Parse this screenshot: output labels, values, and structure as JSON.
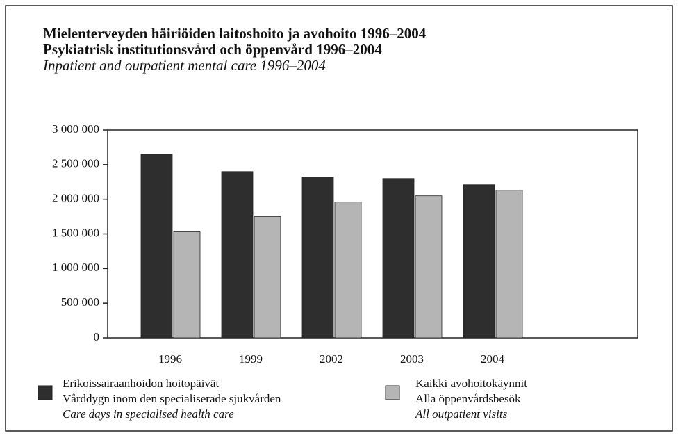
{
  "chart_data": {
    "type": "bar",
    "title": "Mielenterveyden häiriöiden laitoshoito ja avohoito 1996–2004",
    "subtitle": "Psykiatrisk institutionsvård och öppenvård 1996–2004",
    "subtitle_en": "Inpatient and outpatient mental care 1996–2004",
    "categories": [
      "1996",
      "1999",
      "2002",
      "2003",
      "2004"
    ],
    "series": [
      {
        "name": "Erikoissairaanhoidon hoitopäivät",
        "name_sv": "Vårddygn inom den specialiserade sjukvården",
        "name_en": "Care days in specialised health care",
        "color": "#2e2e2e",
        "values": [
          2650000,
          2400000,
          2320000,
          2300000,
          2210000
        ]
      },
      {
        "name": "Kaikki avohoitokäynnit",
        "name_sv": "Alla öppenvårdsbesök",
        "name_en": "All outpatient visits",
        "color": "#b5b5b5",
        "values": [
          1530000,
          1750000,
          1960000,
          2050000,
          2130000
        ]
      }
    ],
    "ylim": [
      0,
      3000000
    ],
    "yticks": [
      0,
      {
        "value": 500000,
        "label": "500 000"
      },
      {
        "value": 1000000,
        "label": "1 000 000"
      },
      {
        "value": 1500000,
        "label": "1 500 000"
      },
      {
        "value": 2000000,
        "label": "2 000 000"
      },
      {
        "value": 2500000,
        "label": "2 500 000"
      },
      {
        "value": 3000000,
        "label": "3 000 000"
      }
    ],
    "grid": false
  }
}
